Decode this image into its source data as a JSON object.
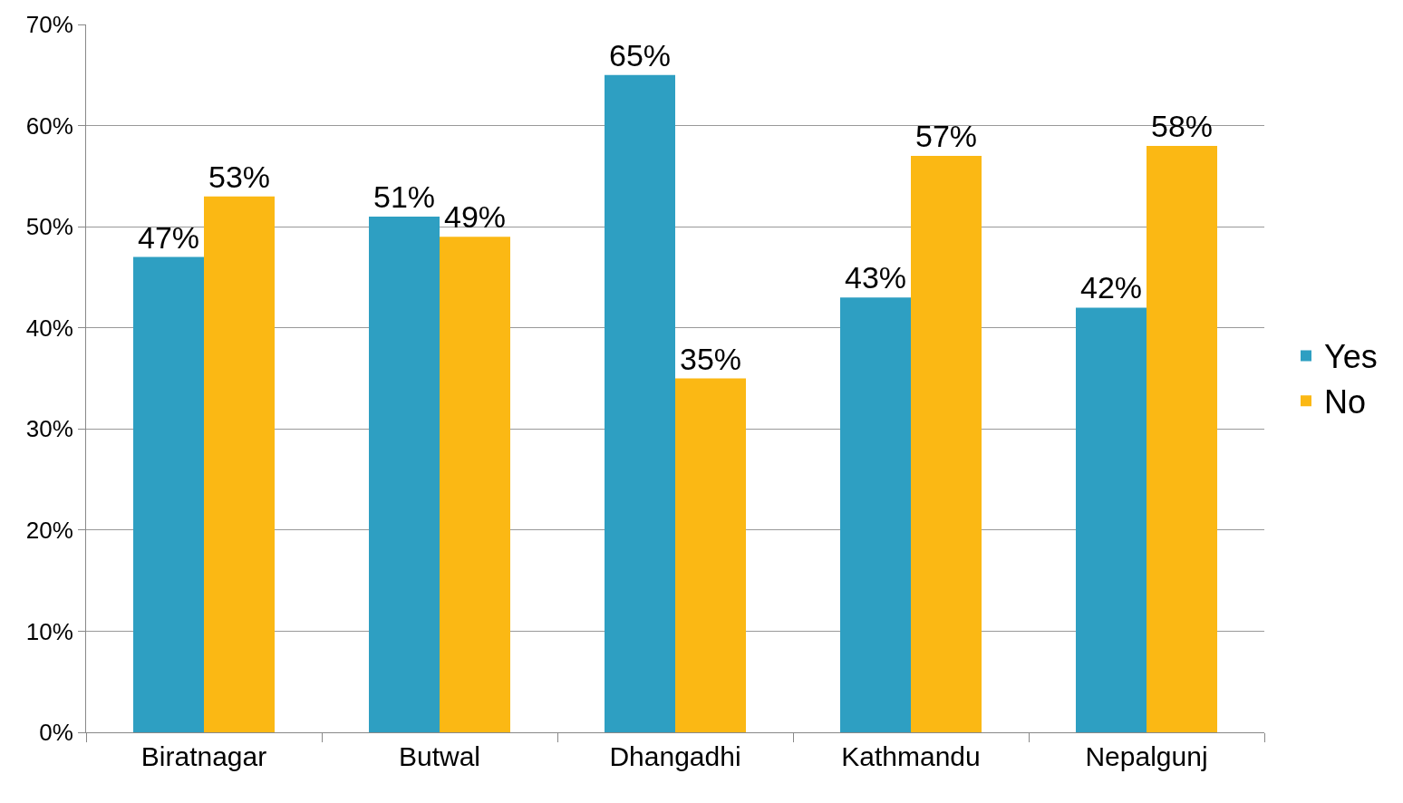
{
  "chart_data": {
    "type": "bar",
    "categories": [
      "Biratnagar",
      "Butwal",
      "Dhangadhi",
      "Kathmandu",
      "Nepalgunj"
    ],
    "series": [
      {
        "name": "Yes",
        "color": "#2e9fc2",
        "values": [
          47,
          51,
          65,
          43,
          42
        ],
        "value_labels": [
          "47%",
          "51%",
          "65%",
          "43%",
          "42%"
        ]
      },
      {
        "name": "No",
        "color": "#fbb814",
        "values": [
          53,
          49,
          35,
          57,
          58
        ],
        "value_labels": [
          "53%",
          "49%",
          "35%",
          "57%",
          "58%"
        ]
      }
    ],
    "ylim": [
      0,
      70
    ],
    "yticks": [
      {
        "value": 0,
        "label": "0%"
      },
      {
        "value": 10,
        "label": "10%"
      },
      {
        "value": 20,
        "label": "20%"
      },
      {
        "value": 30,
        "label": "30%"
      },
      {
        "value": 40,
        "label": "40%"
      },
      {
        "value": 50,
        "label": "50%"
      },
      {
        "value": 60,
        "label": "60%"
      },
      {
        "value": 70,
        "label": "70%"
      }
    ],
    "grid": "y",
    "legend": "right"
  }
}
